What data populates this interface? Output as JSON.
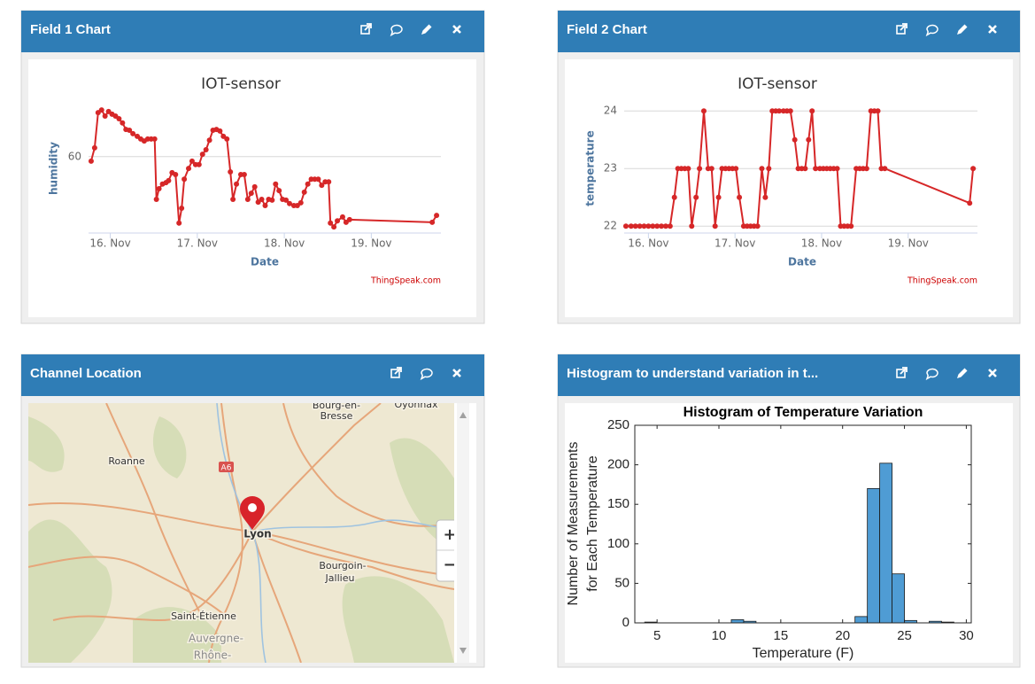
{
  "panels": [
    {
      "title": "Field 1 Chart"
    },
    {
      "title": "Field 2 Chart"
    },
    {
      "title": "Channel Location"
    },
    {
      "title": "Histogram to understand variation in t..."
    }
  ],
  "chart_data": [
    {
      "type": "line",
      "title": "IOT-sensor",
      "xlabel": "Date",
      "ylabel": "humidity",
      "credit": "ThingSpeak.com",
      "color": "#d62728",
      "x": [
        15.78,
        15.82,
        15.86,
        15.9,
        15.94,
        15.98,
        16.02,
        16.06,
        16.1,
        16.14,
        16.18,
        16.22,
        16.26,
        16.31,
        16.35,
        16.39,
        16.43,
        16.47,
        16.51,
        16.53,
        16.56,
        16.6,
        16.64,
        16.67,
        16.71,
        16.75,
        16.79,
        16.82,
        16.85,
        16.9,
        16.94,
        16.98,
        17.02,
        17.06,
        17.1,
        17.14,
        17.18,
        17.22,
        17.26,
        17.3,
        17.34,
        17.38,
        17.41,
        17.45,
        17.5,
        17.54,
        17.58,
        17.62,
        17.66,
        17.7,
        17.74,
        17.78,
        17.82,
        17.86,
        17.9,
        17.94,
        17.98,
        18.02,
        18.06,
        18.11,
        18.15,
        18.19,
        18.23,
        18.27,
        18.31,
        18.35,
        18.39,
        18.43,
        18.47,
        18.51,
        18.53,
        18.57,
        18.61,
        18.67,
        18.71,
        18.75,
        19.7,
        19.75
      ],
      "values": [
        58.8,
        62.3,
        71.5,
        72.2,
        70.6,
        71.8,
        71.1,
        70.6,
        69.9,
        68.8,
        67.1,
        66.9,
        66.0,
        65.3,
        64.6,
        64.1,
        64.6,
        64.6,
        64.6,
        48.8,
        51.6,
        52.8,
        53.2,
        53.7,
        55.8,
        55.3,
        42.6,
        46.5,
        54.1,
        56.9,
        58.8,
        57.9,
        57.9,
        60.6,
        61.8,
        64.3,
        66.9,
        67.1,
        66.7,
        65.3,
        64.6,
        56.0,
        48.8,
        52.8,
        55.3,
        55.3,
        48.8,
        50.4,
        52.1,
        48.1,
        48.8,
        47.2,
        48.8,
        48.6,
        52.8,
        51.1,
        48.8,
        48.6,
        47.7,
        47.2,
        47.2,
        47.9,
        50.7,
        52.8,
        54.1,
        54.1,
        54.1,
        52.5,
        53.4,
        53.4,
        42.6,
        41.6,
        43.2,
        44.2,
        42.8,
        43.5,
        42.8,
        44.6
      ],
      "xlim": [
        15.75,
        19.8
      ],
      "ylim": [
        40,
        72
      ],
      "xticks": [
        {
          "value": 16,
          "label": "16. Nov"
        },
        {
          "value": 17,
          "label": "17. Nov"
        },
        {
          "value": 18,
          "label": "18. Nov"
        },
        {
          "value": 19,
          "label": "19. Nov"
        }
      ],
      "yticks": [
        60
      ],
      "grid": true
    },
    {
      "type": "line",
      "title": "IOT-sensor",
      "xlabel": "Date",
      "ylabel": "temperature",
      "credit": "ThingSpeak.com",
      "color": "#d62728",
      "x": [
        15.74,
        15.8,
        15.85,
        15.9,
        15.95,
        16,
        16.05,
        16.1,
        16.15,
        16.2,
        16.25,
        16.3,
        16.34,
        16.38,
        16.42,
        16.46,
        16.5,
        16.55,
        16.59,
        16.64,
        16.69,
        16.73,
        16.77,
        16.81,
        16.85,
        16.89,
        16.93,
        16.97,
        17.01,
        17.05,
        17.1,
        17.14,
        17.18,
        17.22,
        17.26,
        17.31,
        17.35,
        17.39,
        17.43,
        17.47,
        17.51,
        17.56,
        17.6,
        17.64,
        17.69,
        17.73,
        17.77,
        17.81,
        17.85,
        17.89,
        17.93,
        17.98,
        18.02,
        18.06,
        18.1,
        18.14,
        18.18,
        18.22,
        18.26,
        18.3,
        18.34,
        18.4,
        18.44,
        18.48,
        18.52,
        18.57,
        18.61,
        18.65,
        18.69,
        18.73,
        19.71,
        19.75
      ],
      "values": [
        22,
        22,
        22,
        22,
        22,
        22,
        22,
        22,
        22,
        22,
        22,
        22.5,
        23,
        23,
        23,
        23,
        22,
        22.5,
        23,
        24,
        23,
        23,
        22,
        22.5,
        23,
        23,
        23,
        23,
        23,
        22.5,
        22,
        22,
        22,
        22,
        22,
        23,
        22.5,
        23,
        24,
        24,
        24,
        24,
        24,
        24,
        23.5,
        23,
        23,
        23,
        23.5,
        24,
        23,
        23,
        23,
        23,
        23,
        23,
        23,
        22,
        22,
        22,
        22,
        23,
        23,
        23,
        23,
        24,
        24,
        24,
        23,
        23,
        22.4,
        23
      ],
      "xlim": [
        15.72,
        19.8
      ],
      "ylim": [
        21.88,
        24.1
      ],
      "xticks": [
        {
          "value": 16,
          "label": "16. Nov"
        },
        {
          "value": 17,
          "label": "17. Nov"
        },
        {
          "value": 18,
          "label": "18. Nov"
        },
        {
          "value": 19,
          "label": "19. Nov"
        }
      ],
      "yticks": [
        22,
        23,
        24
      ],
      "grid": true
    },
    {
      "type": "histogram",
      "title": "Histogram of Temperature Variation",
      "xlabel": "Temperature (F)",
      "ylabel": [
        "Number of Measurements",
        "for Each Temperature"
      ],
      "color": "#4f9cd4",
      "bins": [
        4,
        5,
        6,
        7,
        8,
        9,
        10,
        11,
        12,
        13,
        14,
        15,
        16,
        17,
        18,
        19,
        20,
        21,
        22,
        23,
        24,
        25,
        26,
        27,
        28,
        29
      ],
      "counts": [
        1,
        0,
        0,
        0,
        0,
        0,
        0,
        4,
        2,
        0,
        0,
        0,
        0,
        0,
        0,
        0,
        0,
        8,
        170,
        202,
        62,
        3,
        0,
        2,
        1
      ],
      "xlim": [
        3.2,
        30.4
      ],
      "ylim": [
        0,
        250
      ],
      "xticks": [
        5,
        10,
        15,
        20,
        25,
        30
      ],
      "yticks": [
        0,
        50,
        100,
        150,
        200,
        250
      ]
    }
  ],
  "map": {
    "labels": [
      "Bourg-en-",
      "Bresse",
      "Oyonnax",
      "Roanne",
      "A6",
      "Lyon",
      "Bourgoin-",
      "Jallieu",
      "Saint-Étienne",
      "Auvergne-",
      "Rhône-"
    ],
    "controls": [
      "+",
      "−"
    ]
  }
}
